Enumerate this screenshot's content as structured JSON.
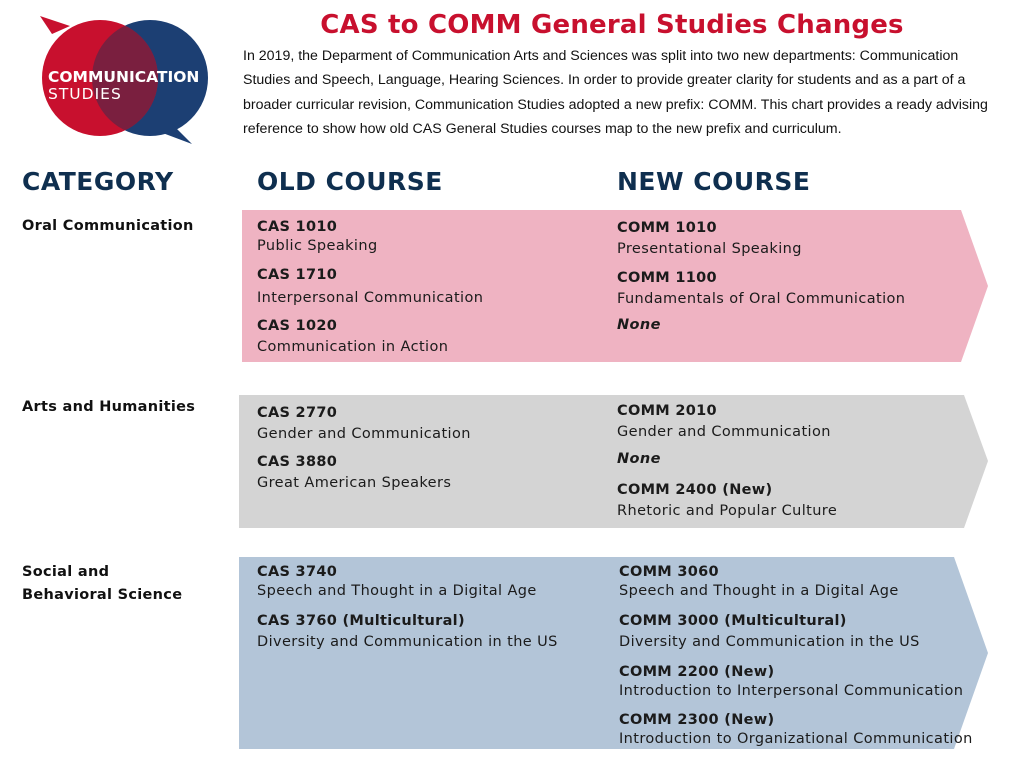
{
  "logo": {
    "line1": "COMMUNICATION",
    "line2": "STUDIES",
    "colors": {
      "red": "#c8102e",
      "navy": "#1c3f73",
      "overlap": "#7a1f3f"
    }
  },
  "title": "CAS to COMM General Studies Changes",
  "intro": "In 2019, the Deparment of Communication Arts and Sciences was split into two new departments: Communication Studies and Speech, Language, Hearing Sciences. In order to provide greater clarity for students and as a part of a broader curricular revision, Communication Studies adopted a new prefix: COMM. This chart provides a ready advising reference to show how old CAS General Studies courses map to the new prefix and curriculum.",
  "headers": {
    "category": "CATEGORY",
    "old": "OLD COURSE",
    "new": "NEW COURSE"
  },
  "colors": {
    "title": "#c8102e",
    "header": "#0f2f4f",
    "oral_band": "#efb3c2",
    "arts_band": "#d4d4d4",
    "social_band": "#b3c5d8"
  },
  "rows": [
    {
      "category": "Oral Communication",
      "old": [
        {
          "code": "CAS 1010",
          "name": "Public Speaking"
        },
        {
          "code": "CAS 1710",
          "name": "Interpersonal Communication"
        },
        {
          "code": "CAS 1020",
          "name": "Communication in Action"
        }
      ],
      "new": [
        {
          "code": "COMM 1010",
          "name": "Presentational Speaking"
        },
        {
          "code": "COMM 1100",
          "name": "Fundamentals of Oral Communication"
        },
        {
          "code": "None"
        }
      ]
    },
    {
      "category": "Arts and Humanities",
      "old": [
        {
          "code": "CAS 2770",
          "name": "Gender and Communication"
        },
        {
          "code": "CAS 3880",
          "name": "Great American Speakers"
        }
      ],
      "new": [
        {
          "code": "COMM 2010",
          "name": "Gender and Communication"
        },
        {
          "code": "None"
        },
        {
          "code": "COMM 2400 (New)",
          "name": "Rhetoric and Popular Culture"
        }
      ]
    },
    {
      "category_line1": "Social and",
      "category_line2": "Behavioral Science",
      "old": [
        {
          "code": "CAS 3740",
          "name": "Speech and Thought in a Digital Age"
        },
        {
          "code": "CAS  3760 (Multicultural)",
          "name": "Diversity and Communication in the US"
        }
      ],
      "new": [
        {
          "code": "COMM 3060",
          "name": "Speech and Thought in a Digital Age"
        },
        {
          "code": "COMM 3000 (Multicultural)",
          "name": "Diversity and Communication in the US"
        },
        {
          "code": "COMM 2200 (New)",
          "name": "Introduction to Interpersonal Communication"
        },
        {
          "code": "COMM 2300 (New)",
          "name": "Introduction to Organizational Communication"
        }
      ]
    }
  ]
}
